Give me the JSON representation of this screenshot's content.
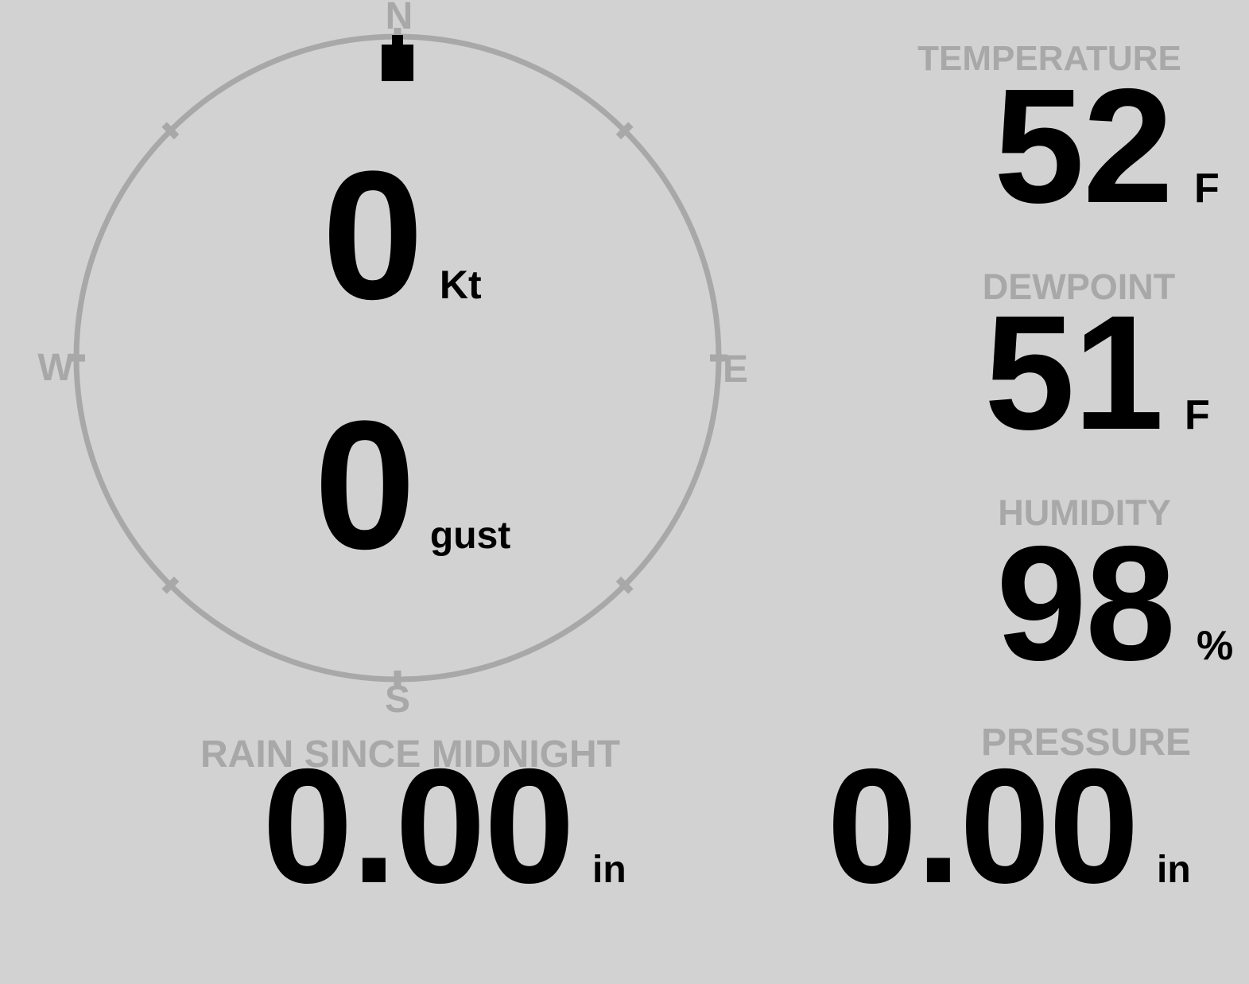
{
  "theme": {
    "background": "#d2d2d2",
    "muted_gray": "#a8a8a8",
    "value_black": "#000000"
  },
  "compass": {
    "north_label": "N",
    "east_label": "E",
    "south_label": "S",
    "west_label": "W",
    "wind_direction_deg": 0
  },
  "wind": {
    "speed_value": "0",
    "speed_unit": "Kt",
    "gust_value": "0",
    "gust_unit": "gust"
  },
  "temperature": {
    "label": "TEMPERATURE",
    "value": "52",
    "unit": "F"
  },
  "dewpoint": {
    "label": "DEWPOINT",
    "value": "51",
    "unit": "F"
  },
  "humidity": {
    "label": "HUMIDITY",
    "value": "98",
    "unit": "%"
  },
  "rain": {
    "label": "RAIN SINCE MIDNIGHT",
    "value": "0.00",
    "unit": "in"
  },
  "pressure": {
    "label": "PRESSURE",
    "value": "0.00",
    "unit": "in"
  }
}
